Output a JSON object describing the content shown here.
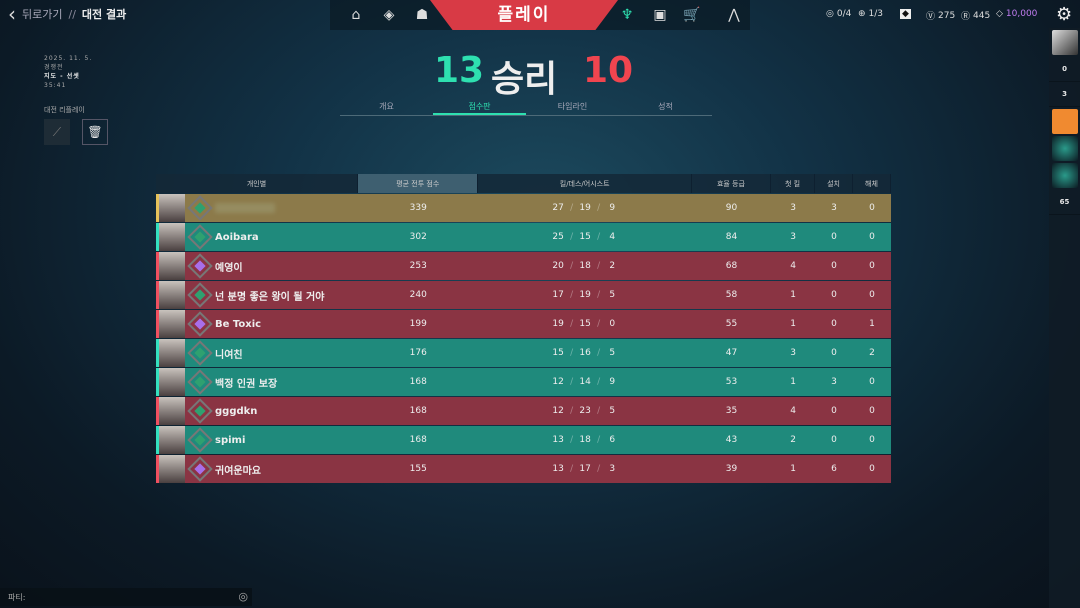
{
  "header": {
    "back": "뒤로가기",
    "sep": "//",
    "title": "대전 결과",
    "play": "플레이",
    "nav_left": [
      "home-icon",
      "pass-icon",
      "agents-icon"
    ],
    "nav_right": [
      "career-icon",
      "collection-icon",
      "store-icon",
      "rank-icon"
    ]
  },
  "currency": {
    "missions": "0/4",
    "weekly": "1/3",
    "vp": "275",
    "rp": "445",
    "kc": "10,000",
    "kc_color": "#c07cf0"
  },
  "match_info": {
    "date": "2025. 11. 5.",
    "mode": "경쟁전",
    "map": "지도 - 선셋",
    "duration": "35:41",
    "replay_label": "대전 리플레이"
  },
  "result": {
    "team_score": "13",
    "result_text": "승리",
    "enemy_score": "10",
    "win_color": "#2ee0b0",
    "loss_color": "#f0454f"
  },
  "tabs": [
    {
      "label": "개요"
    },
    {
      "label": "점수판",
      "active": true
    },
    {
      "label": "타임라인"
    },
    {
      "label": "성적"
    }
  ],
  "scoreboard": {
    "headers": [
      "개인별",
      "평균 전투 점수",
      "킬/데스/어시스트",
      "효율 등급",
      "첫 킬",
      "설치",
      "해체"
    ],
    "rows": [
      {
        "team": "gold",
        "rank": "green",
        "name": "",
        "acs": "339",
        "k": "27",
        "d": "19",
        "a": "9",
        "econ": "90",
        "fk": "3",
        "plants": "3",
        "defuses": "0"
      },
      {
        "team": "teal",
        "rank": "green",
        "name": "Aoibara",
        "acs": "302",
        "k": "25",
        "d": "15",
        "a": "4",
        "econ": "84",
        "fk": "3",
        "plants": "0",
        "defuses": "0"
      },
      {
        "team": "red",
        "rank": "purple",
        "name": "예영이",
        "acs": "253",
        "k": "20",
        "d": "18",
        "a": "2",
        "econ": "68",
        "fk": "4",
        "plants": "0",
        "defuses": "0"
      },
      {
        "team": "red",
        "rank": "green",
        "name": "넌 분명 좋은 왕이 될 거야",
        "acs": "240",
        "k": "17",
        "d": "19",
        "a": "5",
        "econ": "58",
        "fk": "1",
        "plants": "0",
        "defuses": "0"
      },
      {
        "team": "red",
        "rank": "purple",
        "name": "Be Toxic",
        "acs": "199",
        "k": "19",
        "d": "15",
        "a": "0",
        "econ": "55",
        "fk": "1",
        "plants": "0",
        "defuses": "1"
      },
      {
        "team": "teal",
        "rank": "green",
        "name": "니여친",
        "acs": "176",
        "k": "15",
        "d": "16",
        "a": "5",
        "econ": "47",
        "fk": "3",
        "plants": "0",
        "defuses": "2"
      },
      {
        "team": "teal",
        "rank": "green",
        "name": "백정 인권 보장",
        "acs": "168",
        "k": "12",
        "d": "14",
        "a": "9",
        "econ": "53",
        "fk": "1",
        "plants": "3",
        "defuses": "0"
      },
      {
        "team": "red",
        "rank": "green",
        "name": "gggdkn",
        "acs": "168",
        "k": "12",
        "d": "23",
        "a": "5",
        "econ": "35",
        "fk": "4",
        "plants": "0",
        "defuses": "0"
      },
      {
        "team": "teal",
        "rank": "green",
        "name": "spimi",
        "acs": "168",
        "k": "13",
        "d": "18",
        "a": "6",
        "econ": "43",
        "fk": "2",
        "plants": "0",
        "defuses": "0"
      },
      {
        "team": "red",
        "rank": "purple",
        "name": "귀여운마요",
        "acs": "155",
        "k": "13",
        "d": "17",
        "a": "3",
        "econ": "39",
        "fk": "1",
        "plants": "6",
        "defuses": "0"
      }
    ]
  },
  "social": {
    "count1": "0",
    "count2": "3",
    "level": "65"
  },
  "chat": {
    "label": "파티:"
  }
}
